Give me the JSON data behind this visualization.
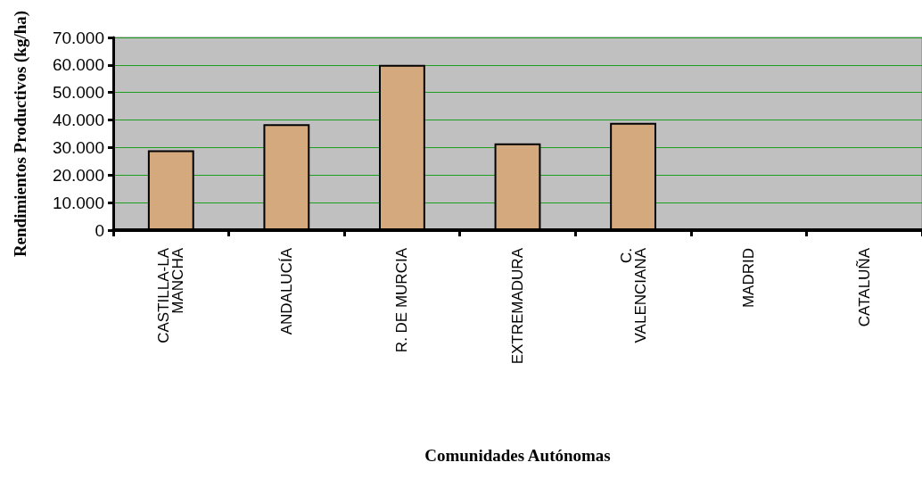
{
  "chart_data": {
    "type": "bar",
    "xlabel": "Comunidades Autónomas",
    "ylabel": "Rendimientos Productivos (kg/ha)",
    "categories": [
      "CASTILLA-LA\nMANCHA",
      "ANDALUCÍA",
      "R. DE MURCIA",
      "EXTREMADURA",
      "C.\nVALENCIANA",
      "MADRID",
      "CATALUÑA"
    ],
    "values": [
      29000,
      38500,
      60000,
      31500,
      39000,
      null,
      null
    ],
    "color": "#d4a97e",
    "ylim": [
      0,
      70000
    ],
    "yticks": [
      {
        "value": 0,
        "label": "0"
      },
      {
        "value": 10000,
        "label": "10.000"
      },
      {
        "value": 20000,
        "label": "20.000"
      },
      {
        "value": 30000,
        "label": "30.000"
      },
      {
        "value": 40000,
        "label": "40.000"
      },
      {
        "value": 50000,
        "label": "50.000"
      },
      {
        "value": 60000,
        "label": "60.000"
      },
      {
        "value": 70000,
        "label": "70.000"
      }
    ],
    "grid": "y"
  }
}
